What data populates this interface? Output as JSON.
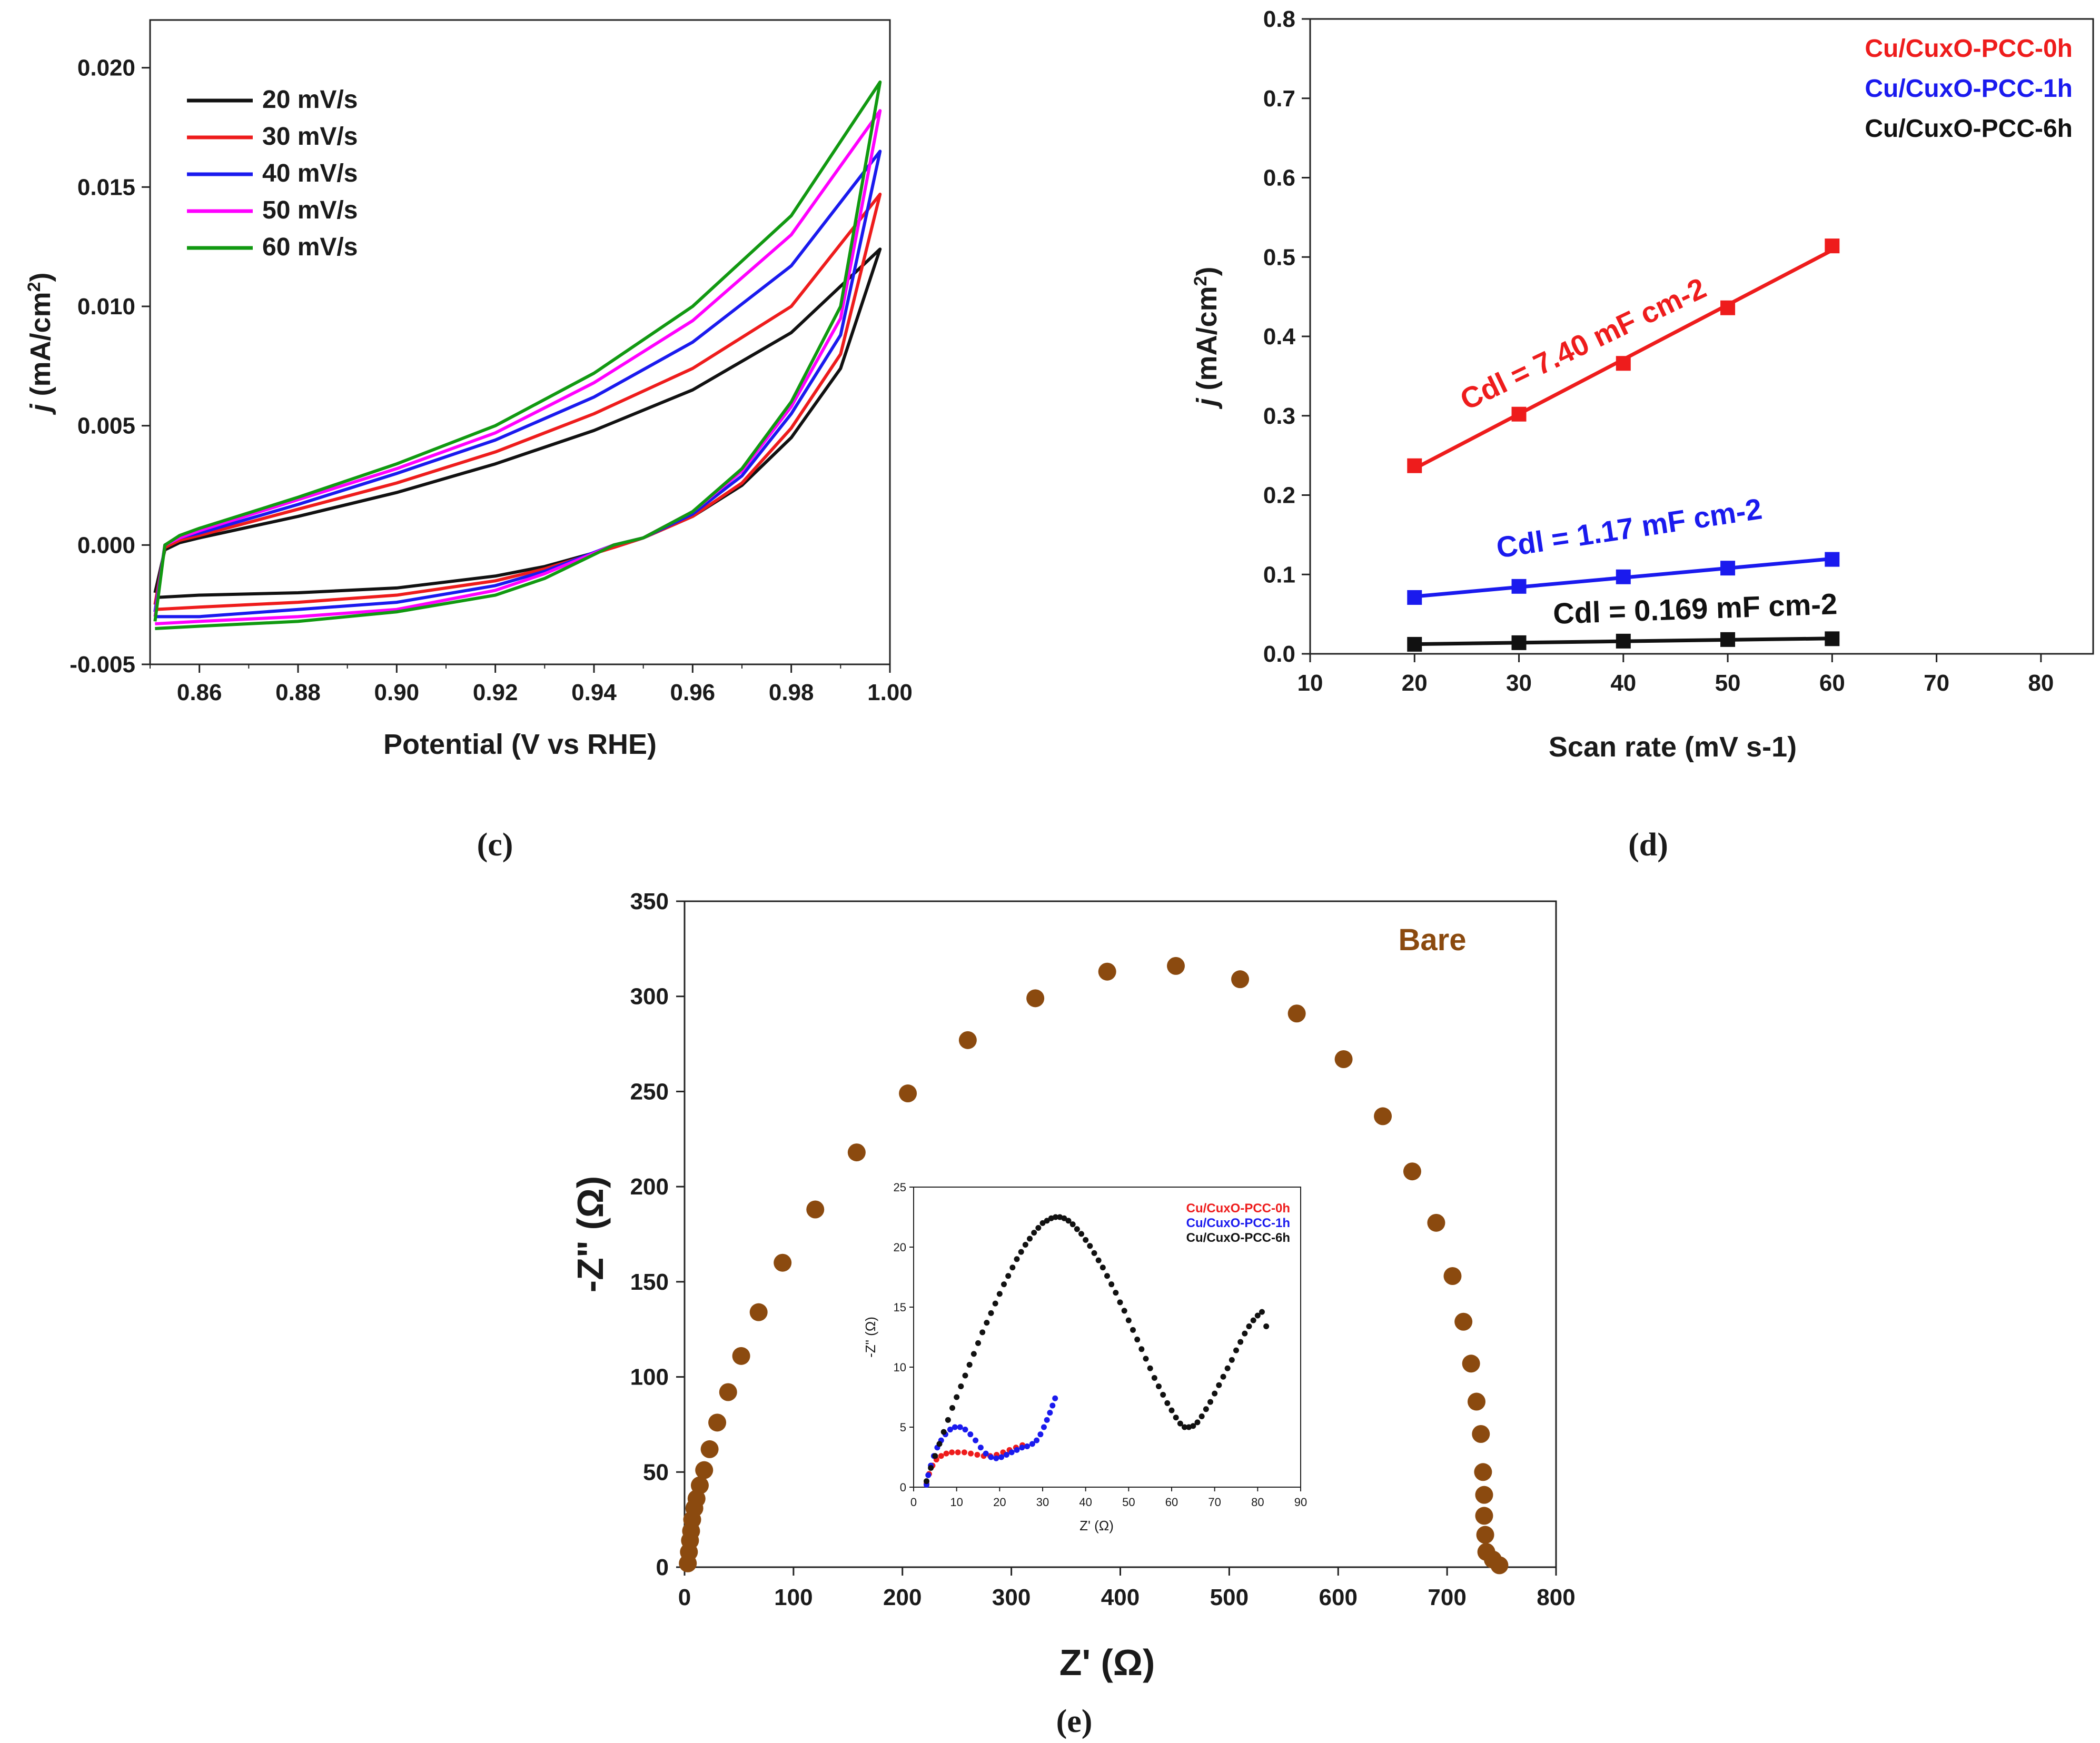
{
  "colors": {
    "black": "#111111",
    "red": "#ee1c1c",
    "blue": "#1a1aee",
    "magenta": "#ff00ff",
    "green": "#119911",
    "brown": "#8b4a0f"
  },
  "chart_data": [
    {
      "id": "c",
      "type": "line",
      "panel_label": "(c)",
      "xlabel": "Potential (V vs RHE)",
      "ylabel": "j (mA/cm2)",
      "xlim": [
        0.85,
        1.0
      ],
      "ylim": [
        -0.005,
        0.022
      ],
      "xticks": [
        "0.86",
        "0.88",
        "0.90",
        "0.92",
        "0.94",
        "0.96",
        "0.98",
        "1.00"
      ],
      "yticks": [
        "-0.005",
        "0.000",
        "0.005",
        "0.010",
        "0.015",
        "0.020"
      ],
      "legend_position": "top-left",
      "x_anodic": [
        0.851,
        0.853,
        0.856,
        0.86,
        0.88,
        0.9,
        0.92,
        0.94,
        0.96,
        0.98,
        0.998
      ],
      "x_cathodic": [
        0.998,
        0.99,
        0.98,
        0.97,
        0.96,
        0.95,
        0.944,
        0.93,
        0.92,
        0.9,
        0.88,
        0.86,
        0.851
      ],
      "series": [
        {
          "name": "20 mV/s",
          "color_key": "black",
          "anodic": [
            -0.002,
            -0.0002,
            0.0001,
            0.0003,
            0.0012,
            0.0022,
            0.0034,
            0.0048,
            0.0065,
            0.0089,
            0.0124
          ],
          "cathodic": [
            0.0124,
            0.0074,
            0.0045,
            0.0025,
            0.0012,
            0.0003,
            -0.0001,
            -0.0009,
            -0.0013,
            -0.0018,
            -0.002,
            -0.0021,
            -0.0022
          ]
        },
        {
          "name": "30 mV/s",
          "color_key": "red",
          "anodic": [
            -0.0025,
            -0.0001,
            0.0002,
            0.0004,
            0.0015,
            0.0026,
            0.0039,
            0.0055,
            0.0074,
            0.01,
            0.0147
          ],
          "cathodic": [
            0.0147,
            0.008,
            0.0049,
            0.0026,
            0.0012,
            0.0003,
            -0.0001,
            -0.001,
            -0.0015,
            -0.0021,
            -0.0024,
            -0.0026,
            -0.0027
          ]
        },
        {
          "name": "40 mV/s",
          "color_key": "blue",
          "anodic": [
            -0.0028,
            0.0,
            0.0003,
            0.0005,
            0.0017,
            0.003,
            0.0044,
            0.0062,
            0.0085,
            0.0117,
            0.0165
          ],
          "cathodic": [
            0.0165,
            0.0088,
            0.0055,
            0.0029,
            0.0013,
            0.0003,
            0.0,
            -0.0011,
            -0.0017,
            -0.0024,
            -0.0027,
            -0.003,
            -0.003
          ]
        },
        {
          "name": "50 mV/s",
          "color_key": "magenta",
          "anodic": [
            -0.003,
            0.0,
            0.0003,
            0.0006,
            0.0019,
            0.0032,
            0.0047,
            0.0068,
            0.0094,
            0.013,
            0.0182
          ],
          "cathodic": [
            0.0182,
            0.0095,
            0.0058,
            0.0031,
            0.0014,
            0.0003,
            0.0,
            -0.0012,
            -0.0019,
            -0.0027,
            -0.003,
            -0.0032,
            -0.0033
          ]
        },
        {
          "name": "60 mV/s",
          "color_key": "green",
          "anodic": [
            -0.0032,
            0.0,
            0.0004,
            0.0007,
            0.002,
            0.0034,
            0.005,
            0.0072,
            0.01,
            0.0138,
            0.0194
          ],
          "cathodic": [
            0.0194,
            0.01,
            0.006,
            0.0032,
            0.0014,
            0.0003,
            0.0,
            -0.0014,
            -0.0021,
            -0.0028,
            -0.0032,
            -0.0034,
            -0.0035
          ]
        }
      ]
    },
    {
      "id": "d",
      "type": "scatter",
      "panel_label": "(d)",
      "xlabel": "Scan rate (mV s-1)",
      "ylabel": "j (mA/cm2)",
      "xlim": [
        10,
        85
      ],
      "ylim": [
        0,
        0.8
      ],
      "xticks": [
        "10",
        "20",
        "30",
        "40",
        "50",
        "60",
        "70",
        "80"
      ],
      "yticks": [
        "0.0",
        "0.1",
        "0.2",
        "0.3",
        "0.4",
        "0.5",
        "0.6",
        "0.7",
        "0.8"
      ],
      "legend_position": "top-right",
      "x": [
        20,
        30,
        40,
        50,
        60
      ],
      "series": [
        {
          "name": "Cu/CuxO-PCC-0h",
          "color_key": "red",
          "values": [
            0.237,
            0.302,
            0.366,
            0.436,
            0.514
          ],
          "annotation": "Cdl = 7.40 mF cm-2"
        },
        {
          "name": "Cu/CuxO-PCC-1h",
          "color_key": "blue",
          "values": [
            0.071,
            0.085,
            0.097,
            0.108,
            0.119
          ],
          "annotation": "Cdl = 1.17 mF cm-2"
        },
        {
          "name": "Cu/CuxO-PCC-6h",
          "color_key": "black",
          "values": [
            0.012,
            0.014,
            0.016,
            0.018,
            0.019
          ],
          "annotation": "Cdl = 0.169 mF cm-2"
        }
      ]
    },
    {
      "id": "e",
      "type": "scatter",
      "panel_label": "(e)",
      "xlabel": "Z' (Ω)",
      "ylabel": "-Z\" (Ω)",
      "xlim": [
        0,
        800
      ],
      "ylim": [
        0,
        350
      ],
      "xticks": [
        "0",
        "100",
        "200",
        "300",
        "400",
        "500",
        "600",
        "700",
        "800"
      ],
      "yticks": [
        "0",
        "50",
        "100",
        "150",
        "200",
        "250",
        "300",
        "350"
      ],
      "series": [
        {
          "name": "Bare",
          "color_key": "brown",
          "x": [
            3,
            4,
            5,
            6,
            7,
            9,
            11,
            14,
            18,
            23,
            30,
            40,
            52,
            68,
            90,
            120,
            158,
            205,
            260,
            322,
            388,
            451,
            510,
            562,
            605,
            641,
            668,
            690,
            705,
            715,
            722,
            727,
            731,
            733,
            734,
            734,
            735,
            736,
            742,
            748
          ],
          "y": [
            2,
            8,
            14,
            19,
            25,
            31,
            36,
            43,
            51,
            62,
            76,
            92,
            111,
            134,
            160,
            188,
            218,
            249,
            277,
            299,
            313,
            316,
            309,
            291,
            267,
            237,
            208,
            181,
            153,
            129,
            107,
            87,
            70,
            50,
            38,
            27,
            17,
            8,
            4,
            1
          ]
        }
      ],
      "inset": {
        "type": "scatter",
        "xlabel": "Z' (Ω)",
        "ylabel": "-Z\" (Ω)",
        "xlim": [
          0,
          90
        ],
        "ylim": [
          0,
          25
        ],
        "xticks": [
          "0",
          "10",
          "20",
          "30",
          "40",
          "50",
          "60",
          "70",
          "80",
          "90"
        ],
        "yticks": [
          "0",
          "5",
          "10",
          "15",
          "20",
          "25"
        ],
        "legend_position": "top-right",
        "series": [
          {
            "name": "Cu/CuxO-PCC-0h",
            "color_key": "red",
            "x": [
              3,
              3.6,
              4.4,
              5.3,
              6.4,
              7.6,
              8.9,
              10.3,
              11.8,
              13.3,
              14.8,
              16.3,
              17.8,
              19.3,
              20.8,
              22.3,
              23.8,
              25.3
            ],
            "y": [
              0.3,
              1.1,
              1.8,
              2.3,
              2.6,
              2.8,
              2.9,
              2.9,
              2.9,
              2.8,
              2.7,
              2.6,
              2.6,
              2.7,
              2.9,
              3.1,
              3.3,
              3.5
            ]
          },
          {
            "name": "Cu/CuxO-PCC-1h",
            "color_key": "blue",
            "x": [
              3,
              3.4,
              4,
              4.7,
              5.5,
              6.4,
              7.4,
              8.5,
              9.6,
              10.8,
              12,
              13.2,
              14.4,
              15.6,
              16.8,
              18,
              19.2,
              20.4,
              21.6,
              22.8,
              24,
              25.2,
              26.4,
              27.6,
              28.6,
              29.5,
              30.3,
              31,
              31.7,
              32.3,
              32.9
            ],
            "y": [
              0.2,
              1,
              1.8,
              2.6,
              3.3,
              3.9,
              4.4,
              4.8,
              5,
              5,
              4.8,
              4.4,
              3.9,
              3.3,
              2.8,
              2.5,
              2.4,
              2.5,
              2.7,
              2.9,
              3.1,
              3.3,
              3.4,
              3.6,
              3.9,
              4.4,
              5,
              5.6,
              6.2,
              6.8,
              7.4
            ]
          },
          {
            "name": "Cu/CuxO-PCC-6h",
            "color_key": "black",
            "x": [
              3,
              4,
              5,
              6,
              7,
              8,
              9,
              10,
              11,
              12,
              13,
              14,
              15,
              16,
              17,
              18,
              19,
              20,
              21,
              22,
              23,
              24,
              25,
              26,
              27,
              28,
              29,
              30,
              31,
              32,
              33,
              34,
              35,
              36,
              37,
              38,
              39,
              40,
              41,
              42,
              43,
              44,
              45,
              46,
              47,
              48,
              49,
              50,
              51,
              52,
              53,
              54,
              55,
              56,
              57,
              58,
              59,
              60,
              61,
              62,
              63,
              64,
              65,
              66,
              67,
              68,
              69,
              70,
              71,
              72,
              73,
              74,
              75,
              76,
              77,
              78,
              79,
              80,
              81,
              82
            ],
            "y": [
              0.5,
              1.6,
              2.6,
              3.6,
              4.6,
              5.6,
              6.6,
              7.5,
              8.4,
              9.3,
              10.2,
              11.1,
              12,
              12.9,
              13.7,
              14.5,
              15.3,
              16.1,
              16.9,
              17.6,
              18.3,
              19,
              19.6,
              20.2,
              20.7,
              21.2,
              21.6,
              22,
              22.2,
              22.4,
              22.5,
              22.5,
              22.4,
              22.2,
              21.9,
              21.5,
              21.1,
              20.6,
              20.1,
              19.5,
              18.9,
              18.3,
              17.6,
              16.9,
              16.2,
              15.4,
              14.7,
              13.9,
              13.1,
              12.3,
              11.5,
              10.7,
              9.9,
              9.1,
              8.4,
              7.7,
              7,
              6.4,
              5.8,
              5.3,
              5,
              5,
              5.1,
              5.4,
              5.9,
              6.5,
              7.1,
              7.8,
              8.5,
              9.2,
              9.9,
              10.6,
              11.4,
              12.1,
              12.8,
              13.4,
              13.9,
              14.3,
              14.6,
              13.4
            ]
          }
        ]
      }
    }
  ]
}
